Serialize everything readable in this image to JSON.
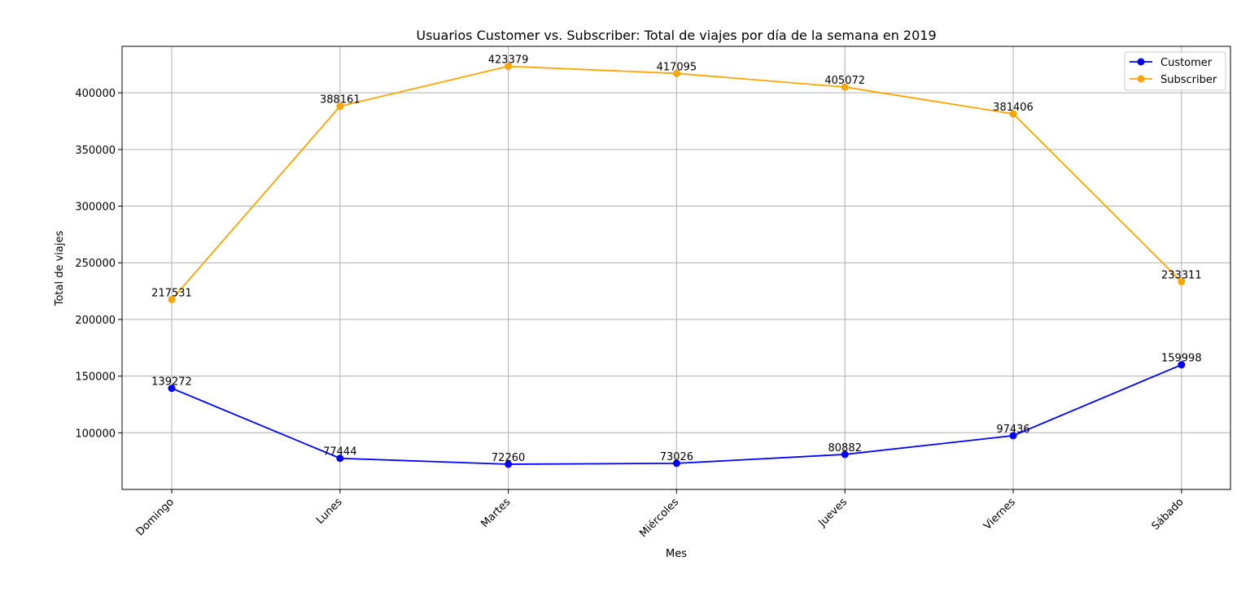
{
  "chart_data": {
    "type": "line",
    "title": "Usuarios Customer vs. Subscriber: Total de viajes por día de la semana en 2019",
    "xlabel": "Mes",
    "ylabel": "Total de viajes",
    "categories": [
      "Domingo",
      "Lunes",
      "Martes",
      "Miércoles",
      "Jueves",
      "Viernes",
      "Sábado"
    ],
    "series": [
      {
        "name": "Customer",
        "color": "#0000ff",
        "values": [
          139272,
          77444,
          72260,
          73026,
          80882,
          97436,
          159998
        ]
      },
      {
        "name": "Subscriber",
        "color": "#ffa500",
        "values": [
          217531,
          388161,
          423379,
          417095,
          405072,
          381406,
          233311
        ]
      }
    ],
    "ylim": [
      50000,
      441000
    ],
    "yticks": [
      100000,
      150000,
      200000,
      250000,
      300000,
      350000,
      400000
    ],
    "grid": true,
    "legend_position": "top-right",
    "marker": "circle"
  }
}
